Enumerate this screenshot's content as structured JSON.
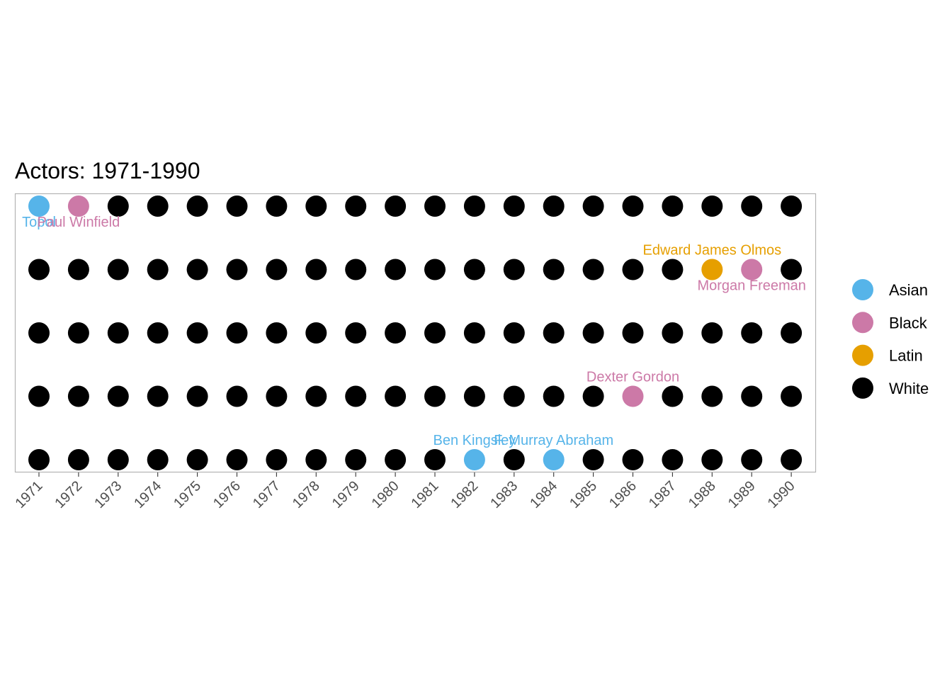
{
  "chart_data": {
    "type": "scatter",
    "title": "Actors: 1971-1990",
    "xlabel": "",
    "ylabel": "",
    "x_categories": [
      "1971",
      "1972",
      "1973",
      "1974",
      "1975",
      "1976",
      "1977",
      "1978",
      "1979",
      "1980",
      "1981",
      "1982",
      "1983",
      "1984",
      "1985",
      "1986",
      "1987",
      "1988",
      "1989",
      "1990"
    ],
    "rows": 5,
    "grid": false,
    "legend_position": "right",
    "colors": {
      "Asian": "#56B4E9",
      "Black": "#CC79A7",
      "Latin": "#E69F00",
      "White": "#000000"
    },
    "legend": [
      "Asian",
      "Black",
      "Latin",
      "White"
    ],
    "default_group": "White",
    "highlighted_points": [
      {
        "year": "1971",
        "row": 5,
        "group": "Asian",
        "label": "Topol",
        "label_pos": "below"
      },
      {
        "year": "1972",
        "row": 5,
        "group": "Black",
        "label": "Paul Winfield",
        "label_pos": "below"
      },
      {
        "year": "1988",
        "row": 4,
        "group": "Latin",
        "label": "Edward James Olmos",
        "label_pos": "above"
      },
      {
        "year": "1989",
        "row": 4,
        "group": "Black",
        "label": "Morgan Freeman",
        "label_pos": "below"
      },
      {
        "year": "1986",
        "row": 2,
        "group": "Black",
        "label": "Dexter Gordon",
        "label_pos": "above"
      },
      {
        "year": "1982",
        "row": 1,
        "group": "Asian",
        "label": "Ben Kingsley",
        "label_pos": "above"
      },
      {
        "year": "1984",
        "row": 1,
        "group": "Asian",
        "label": "F. Murray Abraham",
        "label_pos": "above"
      }
    ]
  }
}
